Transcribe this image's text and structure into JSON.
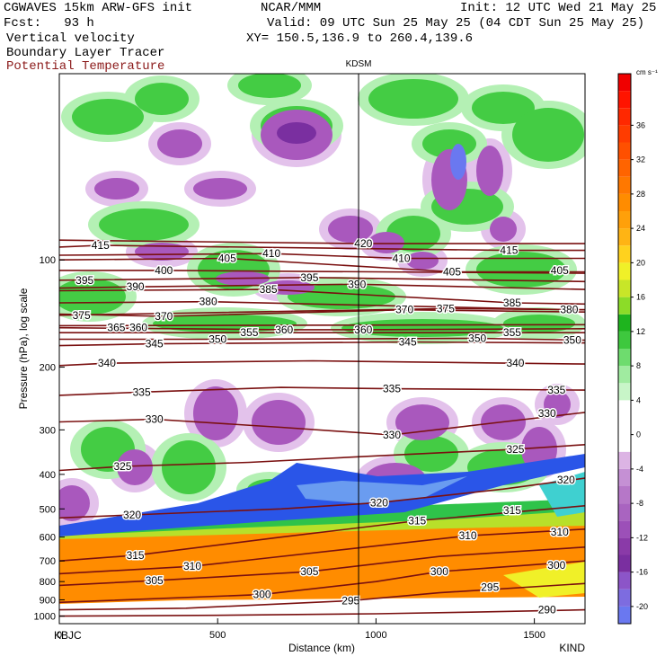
{
  "header": {
    "model": "CGWAVES 15km ARW-GFS init",
    "org": "NCAR/MMM",
    "init": "Init: 12 UTC Wed 21 May 25",
    "fcst": "Fcst:   93 h",
    "valid": "Valid: 09 UTC Sun 25 May 25 (04 CDT Sun 25 May 25)",
    "var1": "Vertical velocity",
    "xy": "XY= 150.5,136.9 to 260.4,139.6",
    "var2": "Boundary Layer Tracer",
    "var3": "Potential Temperature"
  },
  "chart_data": {
    "type": "heatmap",
    "title": "",
    "station_marker": {
      "label": "KDSM",
      "distance_km": 945
    },
    "x_axis": {
      "label": "Distance (km)",
      "range": [
        0,
        1660
      ],
      "ticks": [
        0,
        500,
        1000,
        1500
      ],
      "tick_labels": [
        "0",
        "500",
        "1000",
        "1500"
      ],
      "end_labels": {
        "left": "KBJC",
        "right": "KIND"
      }
    },
    "y_axis": {
      "label": "Pressure (hPa), log scale",
      "scale": "log",
      "range": [
        1050,
        30
      ],
      "ticks": [
        100,
        200,
        300,
        400,
        500,
        600,
        700,
        800,
        900,
        1000
      ],
      "tick_labels": [
        "100",
        "200",
        "300",
        "400",
        "500",
        "600",
        "700",
        "800",
        "900",
        "1000"
      ]
    },
    "colorbar": {
      "unit": "cm s⁻¹",
      "levels": [
        -22,
        -20,
        -18,
        -16,
        -14,
        -12,
        -10,
        -8,
        -6,
        -4,
        -2,
        2,
        4,
        6,
        8,
        10,
        12,
        14,
        16,
        18,
        20,
        22,
        24,
        26,
        28,
        30,
        32,
        34,
        36,
        38,
        40,
        42
      ],
      "colors": [
        "#6a78f0",
        "#7d6ce0",
        "#8c55c8",
        "#7a2fa0",
        "#8a3aa8",
        "#9c50b8",
        "#a964c0",
        "#b677c8",
        "#c590d4",
        "#dcb4e4",
        "#ffffff",
        "#ffffff",
        "#c8f5c8",
        "#a0eba0",
        "#6edc6e",
        "#3ec83e",
        "#1eb41e",
        "#8cdc28",
        "#c8e628",
        "#f0f028",
        "#ffd21e",
        "#ffb414",
        "#ffa00a",
        "#ff8c00",
        "#ff7800",
        "#ff6400",
        "#ff5000",
        "#ff3c00",
        "#ff2800",
        "#ff1400",
        "#f00000"
      ],
      "tick_labels": [
        "36",
        "32",
        "28",
        "24",
        "20",
        "16",
        "12",
        "8",
        "4",
        "0",
        "-4",
        "-8",
        "-12",
        "-16",
        "-20"
      ],
      "tick_values": [
        36,
        32,
        28,
        24,
        20,
        16,
        12,
        8,
        4,
        0,
        -4,
        -8,
        -12,
        -16,
        -20
      ]
    },
    "theta_contours": [
      {
        "value": 290,
        "labels": [
          {
            "x_km": 1540,
            "p": 960
          }
        ],
        "points": [
          [
            0,
            1000
          ],
          [
            500,
            995
          ],
          [
            1000,
            985
          ],
          [
            1300,
            975
          ],
          [
            1660,
            960
          ]
        ]
      },
      {
        "value": 295,
        "labels": [
          {
            "x_km": 920,
            "p": 905
          },
          {
            "x_km": 1360,
            "p": 830
          }
        ],
        "points": [
          [
            0,
            960
          ],
          [
            400,
            950
          ],
          [
            920,
            905
          ],
          [
            1200,
            860
          ],
          [
            1660,
            810
          ]
        ]
      },
      {
        "value": 300,
        "labels": [
          {
            "x_km": 640,
            "p": 870
          },
          {
            "x_km": 1200,
            "p": 750
          },
          {
            "x_km": 1570,
            "p": 720
          }
        ],
        "points": [
          [
            0,
            915
          ],
          [
            640,
            870
          ],
          [
            1000,
            800
          ],
          [
            1200,
            750
          ],
          [
            1660,
            700
          ]
        ]
      },
      {
        "value": 305,
        "labels": [
          {
            "x_km": 300,
            "p": 795
          },
          {
            "x_km": 790,
            "p": 750
          }
        ],
        "points": [
          [
            0,
            820
          ],
          [
            300,
            795
          ],
          [
            790,
            750
          ],
          [
            1200,
            680
          ],
          [
            1660,
            640
          ]
        ]
      },
      {
        "value": 310,
        "labels": [
          {
            "x_km": 420,
            "p": 725
          },
          {
            "x_km": 1290,
            "p": 595
          },
          {
            "x_km": 1580,
            "p": 580
          }
        ],
        "points": [
          [
            0,
            760
          ],
          [
            420,
            725
          ],
          [
            900,
            650
          ],
          [
            1290,
            595
          ],
          [
            1660,
            570
          ]
        ]
      },
      {
        "value": 315,
        "labels": [
          {
            "x_km": 240,
            "p": 675
          },
          {
            "x_km": 1130,
            "p": 540
          },
          {
            "x_km": 1430,
            "p": 505
          }
        ],
        "points": [
          [
            0,
            700
          ],
          [
            240,
            675
          ],
          [
            700,
            600
          ],
          [
            1130,
            540
          ],
          [
            1660,
            490
          ]
        ]
      },
      {
        "value": 320,
        "labels": [
          {
            "x_km": 230,
            "p": 520
          },
          {
            "x_km": 1010,
            "p": 480
          },
          {
            "x_km": 1600,
            "p": 415
          }
        ],
        "points": [
          [
            0,
            530
          ],
          [
            230,
            520
          ],
          [
            700,
            500
          ],
          [
            1010,
            480
          ],
          [
            1400,
            440
          ],
          [
            1660,
            410
          ]
        ]
      },
      {
        "value": 325,
        "labels": [
          {
            "x_km": 200,
            "p": 380
          },
          {
            "x_km": 1440,
            "p": 340
          }
        ],
        "points": [
          [
            0,
            390
          ],
          [
            200,
            380
          ],
          [
            600,
            370
          ],
          [
            1000,
            355
          ],
          [
            1440,
            340
          ],
          [
            1660,
            330
          ]
        ]
      },
      {
        "value": 330,
        "labels": [
          {
            "x_km": 300,
            "p": 280
          },
          {
            "x_km": 1050,
            "p": 310
          },
          {
            "x_km": 1540,
            "p": 270
          }
        ],
        "points": [
          [
            0,
            285
          ],
          [
            300,
            280
          ],
          [
            700,
            295
          ],
          [
            1050,
            310
          ],
          [
            1400,
            285
          ],
          [
            1660,
            268
          ]
        ]
      },
      {
        "value": 335,
        "labels": [
          {
            "x_km": 260,
            "p": 235
          },
          {
            "x_km": 1050,
            "p": 230
          },
          {
            "x_km": 1570,
            "p": 232
          }
        ],
        "points": [
          [
            0,
            240
          ],
          [
            260,
            235
          ],
          [
            700,
            228
          ],
          [
            1050,
            230
          ],
          [
            1660,
            232
          ]
        ]
      },
      {
        "value": 340,
        "labels": [
          {
            "x_km": 150,
            "p": 195
          },
          {
            "x_km": 1440,
            "p": 195
          }
        ],
        "points": [
          [
            0,
            198
          ],
          [
            150,
            195
          ],
          [
            800,
            192
          ],
          [
            1440,
            195
          ],
          [
            1660,
            196
          ]
        ]
      },
      {
        "value": 345,
        "labels": [
          {
            "x_km": 300,
            "p": 172
          },
          {
            "x_km": 1100,
            "p": 170
          }
        ],
        "points": [
          [
            0,
            174
          ],
          [
            300,
            172
          ],
          [
            1100,
            170
          ],
          [
            1660,
            171
          ]
        ]
      },
      {
        "value": 350,
        "labels": [
          {
            "x_km": 500,
            "p": 167
          },
          {
            "x_km": 1320,
            "p": 166
          },
          {
            "x_km": 1620,
            "p": 168
          }
        ],
        "points": [
          [
            0,
            167
          ],
          [
            500,
            167
          ],
          [
            1320,
            166
          ],
          [
            1660,
            168
          ]
        ]
      },
      {
        "value": 355,
        "labels": [
          {
            "x_km": 600,
            "p": 160
          },
          {
            "x_km": 1430,
            "p": 160
          }
        ],
        "points": [
          [
            0,
            160
          ],
          [
            600,
            160
          ],
          [
            1430,
            160
          ],
          [
            1660,
            160
          ]
        ]
      },
      {
        "value": 360,
        "labels": [
          {
            "x_km": 250,
            "p": 155
          },
          {
            "x_km": 710,
            "p": 157
          },
          {
            "x_km": 960,
            "p": 157
          }
        ],
        "points": [
          [
            0,
            155
          ],
          [
            710,
            157
          ],
          [
            960,
            157
          ],
          [
            1660,
            156
          ]
        ]
      },
      {
        "value": 365,
        "labels": [
          {
            "x_km": 180,
            "p": 155
          }
        ],
        "points": [
          [
            0,
            153
          ],
          [
            1660,
            152
          ]
        ]
      },
      {
        "value": 370,
        "labels": [
          {
            "x_km": 330,
            "p": 144
          },
          {
            "x_km": 1090,
            "p": 138
          }
        ],
        "points": [
          [
            0,
            142
          ],
          [
            330,
            144
          ],
          [
            1090,
            138
          ],
          [
            1660,
            140
          ]
        ]
      },
      {
        "value": 375,
        "labels": [
          {
            "x_km": 70,
            "p": 143
          },
          {
            "x_km": 1220,
            "p": 137
          }
        ],
        "points": [
          [
            0,
            143
          ],
          [
            1220,
            137
          ],
          [
            1660,
            138
          ]
        ]
      },
      {
        "value": 380,
        "labels": [
          {
            "x_km": 470,
            "p": 131
          },
          {
            "x_km": 1610,
            "p": 138
          }
        ],
        "points": [
          [
            0,
            132
          ],
          [
            470,
            131
          ],
          [
            1610,
            138
          ],
          [
            1660,
            138
          ]
        ]
      },
      {
        "value": 385,
        "labels": [
          {
            "x_km": 660,
            "p": 121
          },
          {
            "x_km": 1430,
            "p": 132
          }
        ],
        "points": [
          [
            0,
            122
          ],
          [
            660,
            121
          ],
          [
            1430,
            132
          ],
          [
            1660,
            133
          ]
        ]
      },
      {
        "value": 390,
        "labels": [
          {
            "x_km": 240,
            "p": 119
          },
          {
            "x_km": 940,
            "p": 117
          }
        ],
        "points": [
          [
            0,
            120
          ],
          [
            240,
            119
          ],
          [
            940,
            117
          ],
          [
            1660,
            121
          ]
        ]
      },
      {
        "value": 395,
        "labels": [
          {
            "x_km": 80,
            "p": 114
          },
          {
            "x_km": 790,
            "p": 112
          }
        ],
        "points": [
          [
            0,
            114
          ],
          [
            790,
            112
          ],
          [
            1660,
            115
          ]
        ]
      },
      {
        "value": 400,
        "labels": [
          {
            "x_km": 330,
            "p": 107
          }
        ],
        "points": [
          [
            0,
            107
          ],
          [
            330,
            107
          ],
          [
            1660,
            109
          ]
        ]
      },
      {
        "value": 405,
        "labels": [
          {
            "x_km": 530,
            "p": 99
          },
          {
            "x_km": 1240,
            "p": 108
          },
          {
            "x_km": 1580,
            "p": 107
          }
        ],
        "points": [
          [
            0,
            100
          ],
          [
            530,
            99
          ],
          [
            1240,
            108
          ],
          [
            1660,
            108
          ]
        ]
      },
      {
        "value": 410,
        "labels": [
          {
            "x_km": 670,
            "p": 96
          },
          {
            "x_km": 1080,
            "p": 99
          }
        ],
        "points": [
          [
            0,
            97
          ],
          [
            670,
            96
          ],
          [
            1080,
            99
          ],
          [
            1660,
            99
          ]
        ]
      },
      {
        "value": 415,
        "labels": [
          {
            "x_km": 130,
            "p": 91
          },
          {
            "x_km": 1420,
            "p": 94
          }
        ],
        "points": [
          [
            0,
            92
          ],
          [
            130,
            91
          ],
          [
            1420,
            94
          ],
          [
            1660,
            94
          ]
        ]
      },
      {
        "value": 420,
        "labels": [
          {
            "x_km": 960,
            "p": 90
          }
        ],
        "points": [
          [
            0,
            88
          ],
          [
            960,
            90
          ],
          [
            1660,
            90
          ]
        ]
      }
    ]
  }
}
